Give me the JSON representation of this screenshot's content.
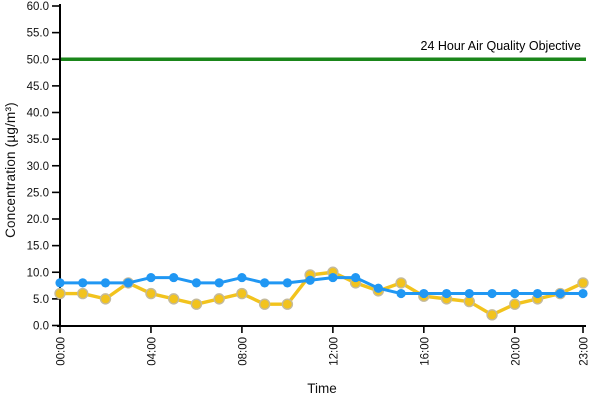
{
  "chart_data": {
    "type": "line",
    "title": "",
    "xlabel": "Time",
    "ylabel": "Concentration (µg/m³)",
    "ylim": [
      0,
      60
    ],
    "ytick_step": 5,
    "yticks": [
      "0.0",
      "5.0",
      "10.0",
      "15.0",
      "20.0",
      "25.0",
      "30.0",
      "35.0",
      "40.0",
      "45.0",
      "50.0",
      "55.0",
      "60.0"
    ],
    "xticks": [
      "00:00",
      "04:00",
      "08:00",
      "12:00",
      "16:00",
      "20:00",
      "23:00"
    ],
    "categories": [
      "00:00",
      "01:00",
      "02:00",
      "03:00",
      "04:00",
      "05:00",
      "06:00",
      "07:00",
      "08:00",
      "09:00",
      "10:00",
      "11:00",
      "12:00",
      "13:00",
      "14:00",
      "15:00",
      "16:00",
      "17:00",
      "18:00",
      "19:00",
      "20:00",
      "21:00",
      "22:00",
      "23:00"
    ],
    "series": [
      {
        "name": "yellow-series",
        "color": "#F2C31D",
        "point_stroke": "#C4BA9C",
        "values": [
          6,
          6,
          5,
          8,
          6,
          5,
          4,
          5,
          6,
          4,
          4,
          9.5,
          10,
          8,
          6.5,
          8,
          5.5,
          5,
          4.5,
          2,
          4,
          5,
          6,
          8
        ]
      },
      {
        "name": "blue-series",
        "color": "#2097F3",
        "point_stroke": "#2097F3",
        "values": [
          8,
          8,
          8,
          8,
          9,
          9,
          8,
          8,
          9,
          8,
          8,
          8.5,
          9,
          9,
          7,
          6,
          6,
          6,
          6,
          6,
          6,
          6,
          6,
          6
        ]
      }
    ],
    "reference_line": {
      "label": "24 Hour Air Quality Objective",
      "value": 50,
      "color": "#1A861A"
    },
    "grid": false,
    "legend": "none",
    "axis_color": "#000000"
  }
}
